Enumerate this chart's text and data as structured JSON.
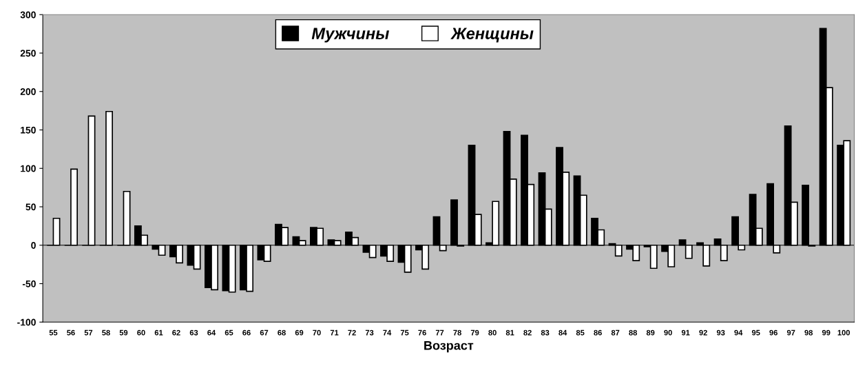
{
  "chart_data": {
    "type": "bar",
    "xlabel": "Возраст",
    "categories": [
      "55",
      "56",
      "57",
      "58",
      "59",
      "60",
      "61",
      "62",
      "63",
      "64",
      "65",
      "66",
      "67",
      "68",
      "69",
      "70",
      "71",
      "72",
      "73",
      "74",
      "75",
      "76",
      "77",
      "78",
      "79",
      "80",
      "81",
      "82",
      "83",
      "84",
      "85",
      "86",
      "87",
      "88",
      "89",
      "90",
      "91",
      "92",
      "93",
      "94",
      "95",
      "96",
      "97",
      "98",
      "99",
      "100"
    ],
    "series": [
      {
        "name": "Мужчины",
        "color": "#000000",
        "values": [
          0,
          0,
          0,
          0,
          0,
          25,
          -5,
          -15,
          -26,
          -55,
          -59,
          -58,
          -19,
          27,
          11,
          23,
          7,
          17,
          -9,
          -14,
          -22,
          -6,
          37,
          59,
          130,
          3,
          148,
          143,
          94,
          127,
          90,
          35,
          2,
          -5,
          -2,
          -8,
          7,
          3,
          8,
          37,
          66,
          80,
          155,
          78,
          282,
          130
        ]
      },
      {
        "name": "Женщины",
        "color": "#ffffff",
        "values": [
          35,
          99,
          168,
          174,
          70,
          13,
          -13,
          -23,
          -31,
          -58,
          -61,
          -60,
          -21,
          23,
          6,
          22,
          6,
          10,
          -16,
          -21,
          -35,
          -31,
          -7,
          -1,
          40,
          57,
          86,
          79,
          47,
          95,
          65,
          20,
          -14,
          -20,
          -30,
          -28,
          -17,
          -27,
          -20,
          -6,
          22,
          -10,
          56,
          -1,
          205,
          136
        ]
      }
    ],
    "ylim": [
      -100,
      300
    ],
    "yticks": [
      -100,
      -50,
      0,
      50,
      100,
      150,
      200,
      250,
      300
    ],
    "ref_lines": [
      {
        "axis": "y",
        "value": 0,
        "color": "#000000"
      }
    ],
    "grid": false,
    "legend": "top"
  }
}
